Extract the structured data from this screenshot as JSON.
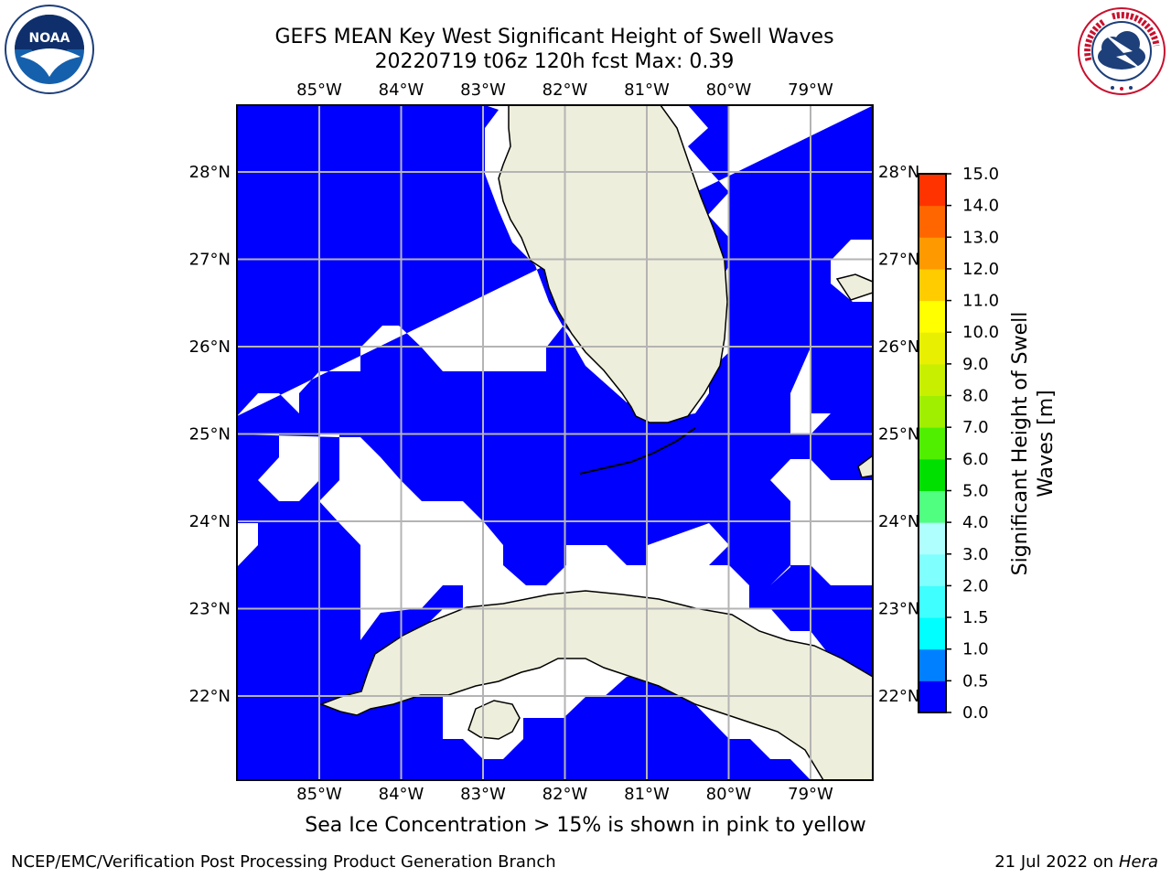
{
  "header": {
    "title_line1": "GEFS MEAN Key West Significant Height of Swell Waves",
    "title_line2": "20220719 t06z 120h fcst   Max: 0.39"
  },
  "logos": {
    "left": {
      "icon": "noaa-logo",
      "text": "NOAA",
      "ring_text": "NATIONAL OCEANIC AND ATMOSPHERIC ADMINISTRATION · U.S. DEPARTMENT OF COMMERCE"
    },
    "right": {
      "icon": "nws-logo",
      "ring_text": "NATIONAL WEATHER SERVICE"
    }
  },
  "map": {
    "lon_labels": [
      "85°W",
      "84°W",
      "83°W",
      "82°W",
      "81°W",
      "80°W",
      "79°W"
    ],
    "lat_labels": [
      "28°N",
      "27°N",
      "26°N",
      "25°N",
      "24°N",
      "23°N",
      "22°N"
    ],
    "colors": {
      "water_swell": "#0000ff",
      "land": "#eeeedc",
      "no_data": "#ffffff",
      "grid": "#b4b4b4"
    }
  },
  "colorbar": {
    "label_line1": "Significant Height of Swell",
    "label_line2": "Waves [m]",
    "ticks": [
      "0.0",
      "0.5",
      "1.0",
      "1.5",
      "2.0",
      "3.0",
      "4.0",
      "5.0",
      "6.0",
      "7.0",
      "8.0",
      "9.0",
      "10.0",
      "11.0",
      "12.0",
      "13.0",
      "14.0",
      "15.0"
    ],
    "colors": [
      "#0000ff",
      "#0080ff",
      "#00ffff",
      "#40ffff",
      "#80ffff",
      "#b0ffff",
      "#50ff80",
      "#00e000",
      "#50ef00",
      "#a0ef00",
      "#c8ef00",
      "#e8ef00",
      "#ffff00",
      "#ffcc00",
      "#ff9900",
      "#ff6600",
      "#ff3300",
      "#ff0000"
    ]
  },
  "chart_data": {
    "type": "heatmap",
    "field": "Significant Height of Swell Waves [m]",
    "max_value": 0.39,
    "range_m": [
      0.0,
      15.0
    ],
    "lon_ticks": [
      -85,
      -84,
      -83,
      -82,
      -81,
      -80,
      -79
    ],
    "lat_ticks": [
      28,
      27,
      26,
      25,
      24,
      23,
      22
    ]
  },
  "note": "Sea Ice Concentration > 15% is shown in pink to yellow",
  "footer": {
    "left": "NCEP/EMC/Verification Post Processing Product Generation Branch",
    "right_date": "21 Jul 2022 on ",
    "right_host": "Hera"
  }
}
